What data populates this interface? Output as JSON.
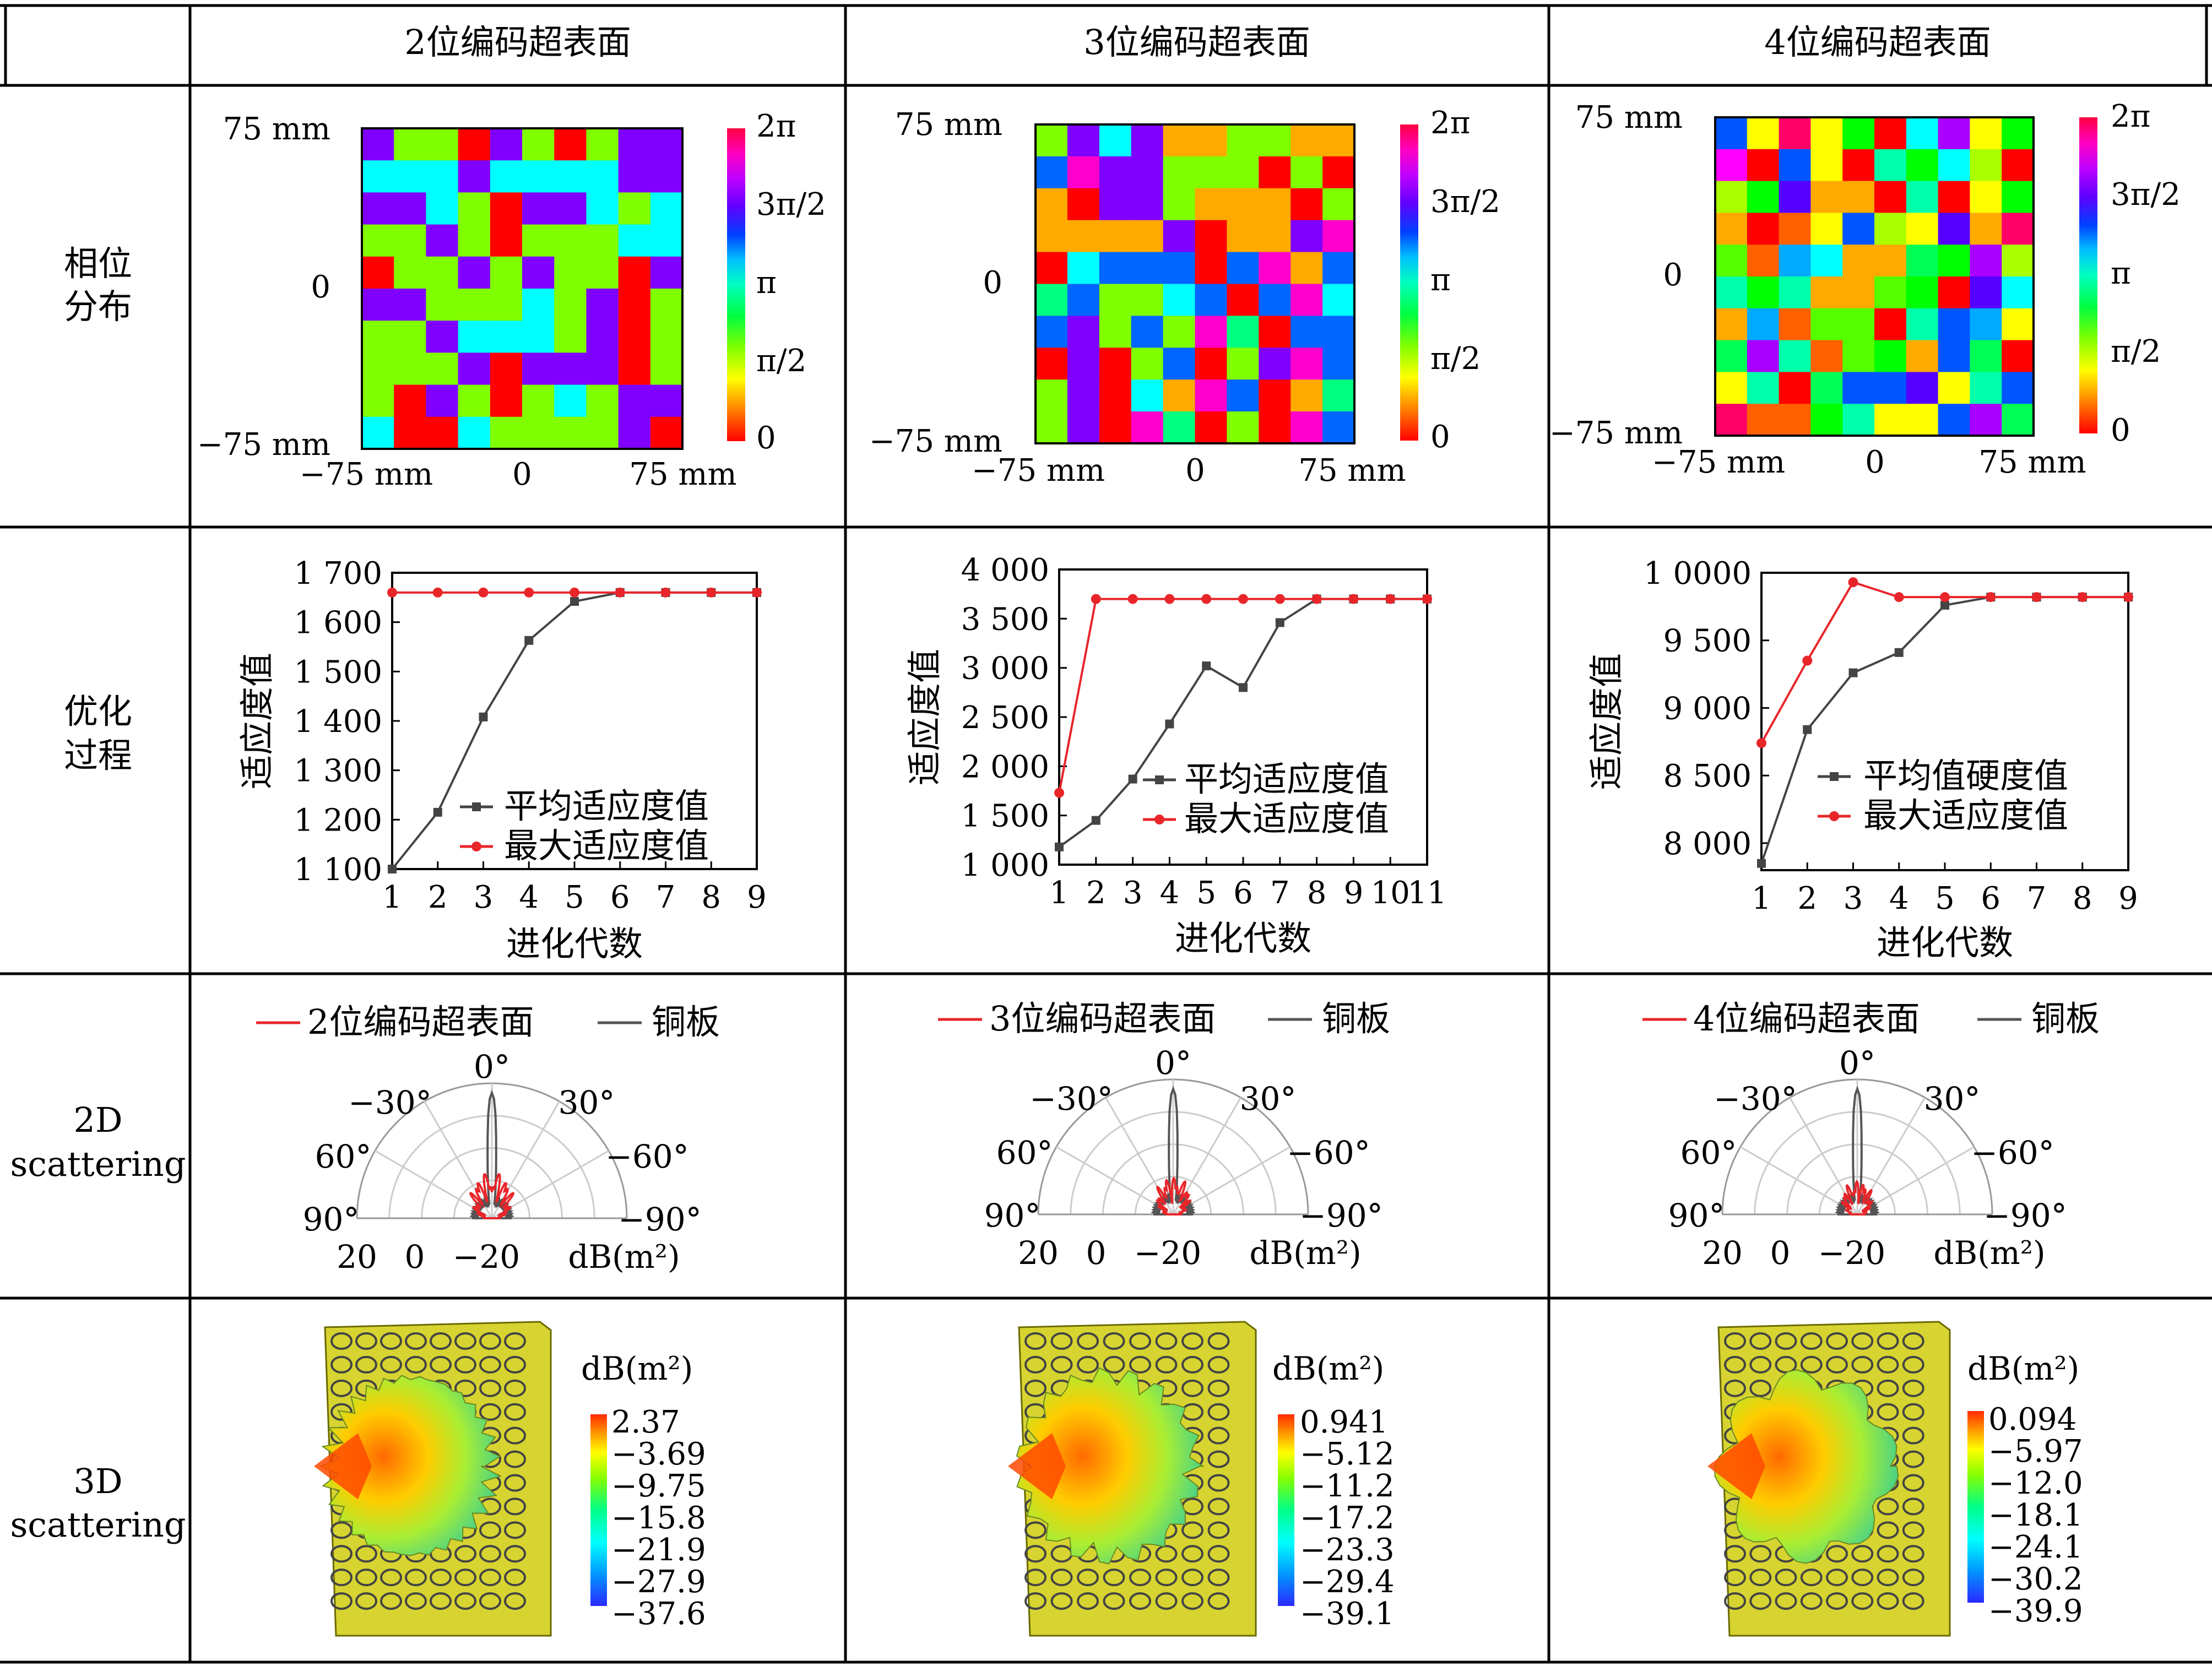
{
  "table": {
    "col_headers": [
      "2位编码超表面",
      "3位编码超表面",
      "4位编码超表面"
    ],
    "row_headers": {
      "phase": [
        "相位",
        "分布"
      ],
      "optim": [
        "优化",
        "过程"
      ],
      "scat2d": [
        "2D",
        "scattering"
      ],
      "scat3d": [
        "3D",
        "scattering"
      ]
    }
  },
  "phase_maps": {
    "axis_labels": {
      "top": "75 mm",
      "mid": "0",
      "bottom": "−75 mm",
      "left": "−75 mm",
      "center": "0",
      "right": "75 mm"
    },
    "colorbar_ticks": [
      "2π",
      "3π/2",
      "π",
      "π/2",
      "0"
    ],
    "colorbar_colors": [
      "#ff0000",
      "#ff8000",
      "#ffff00",
      "#80ff00",
      "#00ff40",
      "#00ffc0",
      "#00c0ff",
      "#0040ff",
      "#6000ff",
      "#c000ff",
      "#ff00c0",
      "#ff0040"
    ],
    "palettes": {
      "p2": [
        "#ff0000",
        "#80ff00",
        "#00ffff",
        "#8000ff"
      ],
      "p3": [
        "#ff0000",
        "#ffaa00",
        "#80ff00",
        "#00ff80",
        "#00ffff",
        "#0066ff",
        "#8000ff",
        "#ff00cc"
      ],
      "p4": [
        "#ff0000",
        "#ff6000",
        "#ffaa00",
        "#ffff00",
        "#aaff00",
        "#55ff00",
        "#00ff00",
        "#00ff55",
        "#00ffaa",
        "#00ffff",
        "#00aaff",
        "#0055ff",
        "#5500ff",
        "#aa00ff",
        "#ff00ff",
        "#ff0066"
      ]
    },
    "maps": [
      {
        "palette": "p2",
        "grid": [
          [
            3,
            1,
            1,
            0,
            3,
            1,
            0,
            1,
            3,
            3
          ],
          [
            2,
            2,
            2,
            3,
            2,
            2,
            2,
            2,
            3,
            3
          ],
          [
            3,
            3,
            2,
            1,
            0,
            3,
            3,
            2,
            1,
            2
          ],
          [
            1,
            1,
            3,
            1,
            0,
            1,
            1,
            1,
            2,
            2
          ],
          [
            0,
            1,
            1,
            3,
            1,
            3,
            1,
            1,
            0,
            3
          ],
          [
            3,
            3,
            1,
            1,
            1,
            2,
            1,
            3,
            0,
            1
          ],
          [
            1,
            1,
            3,
            2,
            2,
            2,
            1,
            3,
            0,
            1
          ],
          [
            1,
            1,
            1,
            3,
            0,
            3,
            3,
            3,
            0,
            1
          ],
          [
            1,
            0,
            3,
            1,
            0,
            1,
            2,
            1,
            3,
            3
          ],
          [
            2,
            0,
            0,
            2,
            1,
            1,
            1,
            1,
            3,
            0
          ]
        ]
      },
      {
        "palette": "p3",
        "grid": [
          [
            2,
            6,
            4,
            6,
            1,
            1,
            2,
            2,
            1,
            1
          ],
          [
            5,
            7,
            6,
            6,
            2,
            2,
            2,
            0,
            2,
            0
          ],
          [
            1,
            0,
            6,
            6,
            2,
            1,
            1,
            1,
            0,
            2
          ],
          [
            1,
            1,
            1,
            1,
            6,
            0,
            1,
            1,
            6,
            7
          ],
          [
            0,
            4,
            5,
            5,
            5,
            0,
            5,
            7,
            1,
            5
          ],
          [
            3,
            5,
            2,
            2,
            4,
            5,
            0,
            5,
            7,
            4
          ],
          [
            5,
            6,
            2,
            5,
            2,
            7,
            3,
            0,
            5,
            5
          ],
          [
            0,
            6,
            0,
            2,
            5,
            0,
            2,
            6,
            7,
            5
          ],
          [
            2,
            6,
            0,
            4,
            1,
            7,
            5,
            0,
            1,
            3
          ],
          [
            2,
            6,
            0,
            7,
            3,
            0,
            2,
            0,
            7,
            5
          ]
        ]
      },
      {
        "palette": "p4",
        "grid": [
          [
            11,
            3,
            15,
            3,
            6,
            0,
            9,
            13,
            3,
            6
          ],
          [
            14,
            0,
            11,
            3,
            0,
            8,
            6,
            9,
            4,
            0
          ],
          [
            4,
            6,
            12,
            2,
            2,
            0,
            8,
            0,
            3,
            6
          ],
          [
            2,
            0,
            1,
            3,
            11,
            4,
            3,
            12,
            2,
            15
          ],
          [
            5,
            1,
            10,
            9,
            2,
            2,
            7,
            6,
            13,
            4
          ],
          [
            8,
            6,
            8,
            2,
            2,
            5,
            6,
            0,
            12,
            9
          ],
          [
            2,
            10,
            1,
            5,
            5,
            0,
            8,
            11,
            10,
            3
          ],
          [
            7,
            13,
            8,
            1,
            5,
            6,
            2,
            11,
            7,
            0
          ],
          [
            3,
            8,
            0,
            7,
            11,
            11,
            12,
            3,
            8,
            11
          ],
          [
            15,
            1,
            1,
            6,
            8,
            3,
            3,
            11,
            13,
            7
          ]
        ]
      }
    ]
  },
  "optim_charts": {
    "xlabel": "进化代数",
    "ylabel": "适应度值",
    "charts": [
      {
        "type": "line",
        "x": [
          1,
          2,
          3,
          4,
          5,
          6,
          7,
          8,
          9
        ],
        "xticks": [
          "1",
          "2",
          "3",
          "4",
          "5",
          "6",
          "7",
          "8",
          "9"
        ],
        "ylim": [
          1100,
          1700
        ],
        "yticks": [
          1100,
          1200,
          1300,
          1400,
          1500,
          1600,
          1700
        ],
        "ytick_labels": [
          "1 100",
          "1 200",
          "1 300",
          "1 400",
          "1 500",
          "1 600",
          "1 700"
        ],
        "series": [
          {
            "name": "平均适应度值",
            "color": "#444444",
            "marker": "square",
            "values": [
              1100,
              1215,
              1408,
              1563,
              1642,
              1660,
              1660,
              1660,
              1660
            ]
          },
          {
            "name": "最大适应度值",
            "color": "#e8262a",
            "marker": "circle",
            "values": [
              1660,
              1660,
              1660,
              1660,
              1660,
              1660,
              1660,
              1660,
              1660
            ]
          }
        ]
      },
      {
        "type": "line",
        "x": [
          1,
          2,
          3,
          4,
          5,
          6,
          7,
          8,
          9,
          10,
          11
        ],
        "xticks": [
          "1",
          "2",
          "3",
          "4",
          "5",
          "6",
          "7",
          "8",
          "9",
          "10",
          "11"
        ],
        "ylim": [
          1000,
          4000
        ],
        "yticks": [
          1000,
          1500,
          2000,
          2500,
          3000,
          3500,
          4000
        ],
        "ytick_labels": [
          "1 000",
          "1 500",
          "2 000",
          "2 500",
          "3 000",
          "3 500",
          "4 000"
        ],
        "series": [
          {
            "name": "平均适应度值",
            "color": "#444444",
            "marker": "square",
            "values": [
              1180,
              1450,
              1870,
              2430,
              3020,
              2800,
              3460,
              3700,
              3700,
              3700,
              3700
            ]
          },
          {
            "name": "最大适应度值",
            "color": "#e8262a",
            "marker": "circle",
            "values": [
              1730,
              3700,
              3700,
              3700,
              3700,
              3700,
              3700,
              3700,
              3700,
              3700,
              3700
            ]
          }
        ]
      },
      {
        "type": "line",
        "x": [
          1,
          2,
          3,
          4,
          5,
          6,
          7,
          8,
          9
        ],
        "xticks": [
          "1",
          "2",
          "3",
          "4",
          "5",
          "6",
          "7",
          "8",
          "9"
        ],
        "ylim": [
          7800,
          10000
        ],
        "yticks": [
          8000,
          8500,
          9000,
          9500,
          10000
        ],
        "ytick_labels": [
          "8 000",
          "8 500",
          "9 000",
          "9 500",
          "1 0000"
        ],
        "series": [
          {
            "name": "平均值硬度值",
            "color": "#444444",
            "marker": "square",
            "values": [
              7850,
              8840,
              9260,
              9410,
              9760,
              9820,
              9820,
              9820,
              9820
            ]
          },
          {
            "name": "最大适应度值",
            "color": "#e8262a",
            "marker": "circle",
            "values": [
              8740,
              9350,
              9930,
              9820,
              9820,
              9820,
              9820,
              9820,
              9820
            ]
          }
        ]
      }
    ]
  },
  "scat2d": {
    "angle_labels": {
      "a0": "0°",
      "l30": "−30°",
      "r30": "30°",
      "l60": "60°",
      "r60": "−60°",
      "l90": "90°",
      "r90": "−90°"
    },
    "radial_labels": [
      "20",
      "0",
      "−20"
    ],
    "unit": "dB(m²)",
    "legend": [
      {
        "surface": "2位编码超表面",
        "plate": "铜板"
      },
      {
        "surface": "3位编码超表面",
        "plate": "铜板"
      },
      {
        "surface": "4位编码超表面",
        "plate": "铜板"
      }
    ]
  },
  "scat3d": {
    "unit": "dB(m²)",
    "colorbar_colors": [
      "#ff2a00",
      "#ff9900",
      "#ffff00",
      "#88ff00",
      "#00ff88",
      "#00ffff",
      "#0099ff",
      "#2a2aff"
    ],
    "ticks": [
      [
        "2.37",
        "−3.69",
        "−9.75",
        "−15.8",
        "−21.9",
        "−27.9",
        "−37.6"
      ],
      [
        "0.941",
        "−5.12",
        "−11.2",
        "−17.2",
        "−23.3",
        "−29.4",
        "−39.1"
      ],
      [
        "0.094",
        "−5.97",
        "−12.0",
        "−18.1",
        "−24.1",
        "−30.2",
        "−39.9"
      ]
    ]
  }
}
